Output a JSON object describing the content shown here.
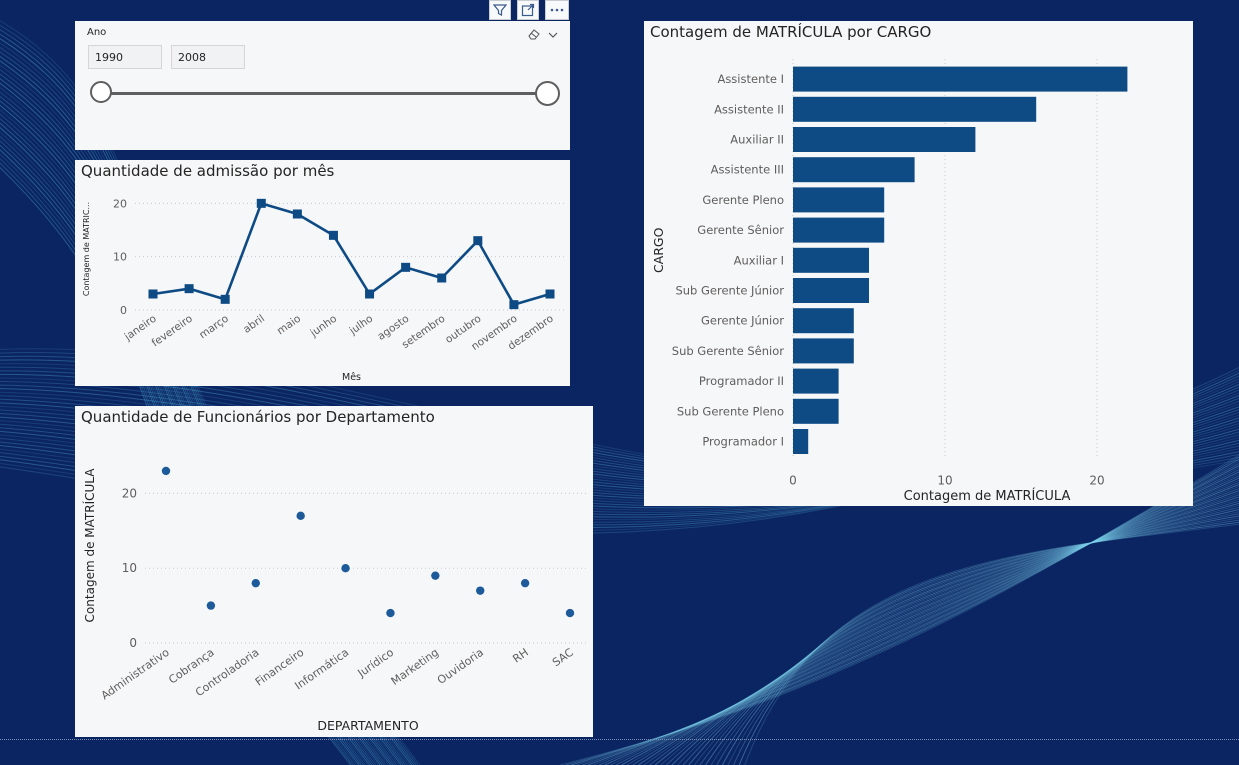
{
  "slicer": {
    "title": "Ano",
    "start": "1990",
    "end": "2008",
    "range": [
      1990,
      2008
    ],
    "selected": [
      1990,
      2008
    ]
  },
  "line_card": {
    "title": "Quantidade de admissão por mês"
  },
  "scatter_card": {
    "title": "Quantidade de Funcionários por Departamento"
  },
  "bar_card": {
    "title": "Contagem de MATRÍCULA por CARGO"
  },
  "chart_data": [
    {
      "type": "line",
      "title": "Quantidade de admissão por mês",
      "xlabel": "Mês",
      "ylabel": "Contagem de MATRIC...",
      "categories": [
        "janeiro",
        "fevereiro",
        "março",
        "abril",
        "maio",
        "junho",
        "julho",
        "agosto",
        "setembro",
        "outubro",
        "novembro",
        "dezembro"
      ],
      "values": [
        3,
        4,
        2,
        20,
        18,
        14,
        3,
        8,
        6,
        13,
        1,
        3
      ],
      "yticks": [
        "0",
        "10",
        "20"
      ],
      "ylim": [
        0,
        21
      ],
      "grid": true,
      "color": "#0e4a84"
    },
    {
      "type": "scatter",
      "title": "Quantidade de Funcionários por Departamento",
      "xlabel": "DEPARTAMENTO",
      "ylabel": "Contagem de MATRÍCULA",
      "categories": [
        "Administrativo",
        "Cobrança",
        "Controladoria",
        "Financeiro",
        "Informática",
        "Jurídico",
        "Marketing",
        "Ouvidoria",
        "RH",
        "SAC"
      ],
      "values": [
        23,
        5,
        8,
        17,
        10,
        4,
        9,
        7,
        8,
        4
      ],
      "yticks": [
        "0",
        "10",
        "20"
      ],
      "ylim": [
        0,
        25
      ],
      "grid": true,
      "color": "#1c5a99"
    },
    {
      "type": "bar",
      "orientation": "horizontal",
      "title": "Contagem de MATRÍCULA por CARGO",
      "xlabel": "Contagem de MATRÍCULA",
      "ylabel": "CARGO",
      "categories": [
        "Assistente I",
        "Assistente II",
        "Auxiliar II",
        "Assistente III",
        "Gerente Pleno",
        "Gerente Sênior",
        "Auxiliar I",
        "Sub Gerente Júnior",
        "Gerente Júnior",
        "Sub Gerente Sênior",
        "Programador II",
        "Sub Gerente Pleno",
        "Programador I"
      ],
      "values": [
        22,
        16,
        12,
        8,
        6,
        6,
        5,
        5,
        4,
        4,
        3,
        3,
        1
      ],
      "xticks": [
        "0",
        "10",
        "20"
      ],
      "xlim": [
        0,
        22.5
      ],
      "grid": true,
      "color": "#0e4a84"
    }
  ],
  "toolbar": {
    "icons": [
      "filter-icon",
      "focus-mode-icon",
      "more-options-icon"
    ]
  },
  "colors": {
    "background": "#0b2563",
    "card": "#f5f7f9",
    "accent": "#0e4a84"
  }
}
